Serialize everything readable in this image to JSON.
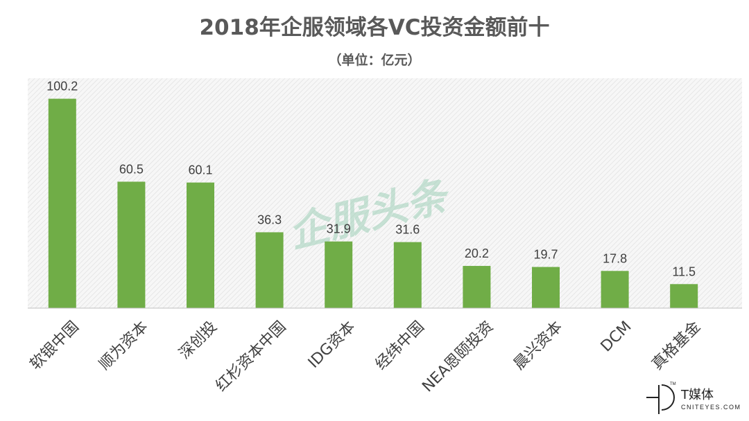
{
  "chart_data": {
    "type": "bar",
    "title": "2018年企服领域各VC投资金额前十",
    "subtitle": "（单位：亿元）",
    "categories": [
      "软银中国",
      "顺为资本",
      "深创投",
      "红杉资本中国",
      "IDG资本",
      "经纬中国",
      "NEA恩颐投资",
      "晨兴资本",
      "DCM",
      "真格基金"
    ],
    "values": [
      100.2,
      60.5,
      60.1,
      36.3,
      31.9,
      31.6,
      20.2,
      19.7,
      17.8,
      11.5
    ],
    "ylim": [
      0,
      110
    ],
    "bar_color": "#70ad47",
    "grid": false
  },
  "watermark": {
    "text": "企服头条",
    "color": "#9fd0b8"
  },
  "brand": {
    "name": "T媒体",
    "sub": "CNITEYES.COM",
    "tm": "TM"
  }
}
